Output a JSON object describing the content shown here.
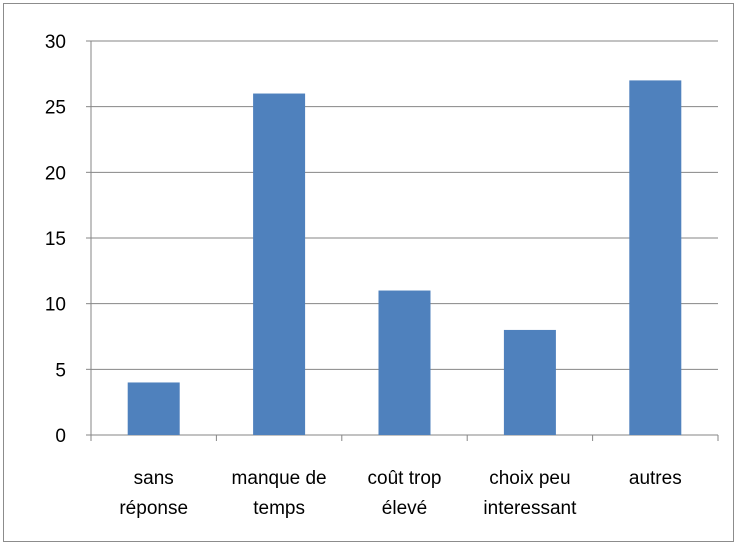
{
  "chart_data": {
    "type": "bar",
    "categories": [
      [
        "sans",
        "réponse"
      ],
      [
        "manque de",
        "temps"
      ],
      [
        "coût trop",
        "élevé"
      ],
      [
        "choix peu",
        "interessant"
      ],
      [
        "autres"
      ]
    ],
    "values": [
      4,
      26,
      11,
      8,
      27
    ],
    "yticks": [
      "0",
      "5",
      "10",
      "15",
      "20",
      "25",
      "30"
    ],
    "ylim": [
      0,
      30
    ],
    "grid": true,
    "legend": "none",
    "colors": {
      "bar": "#4f81bd",
      "grid": "#868686",
      "axis": "#868686"
    }
  }
}
